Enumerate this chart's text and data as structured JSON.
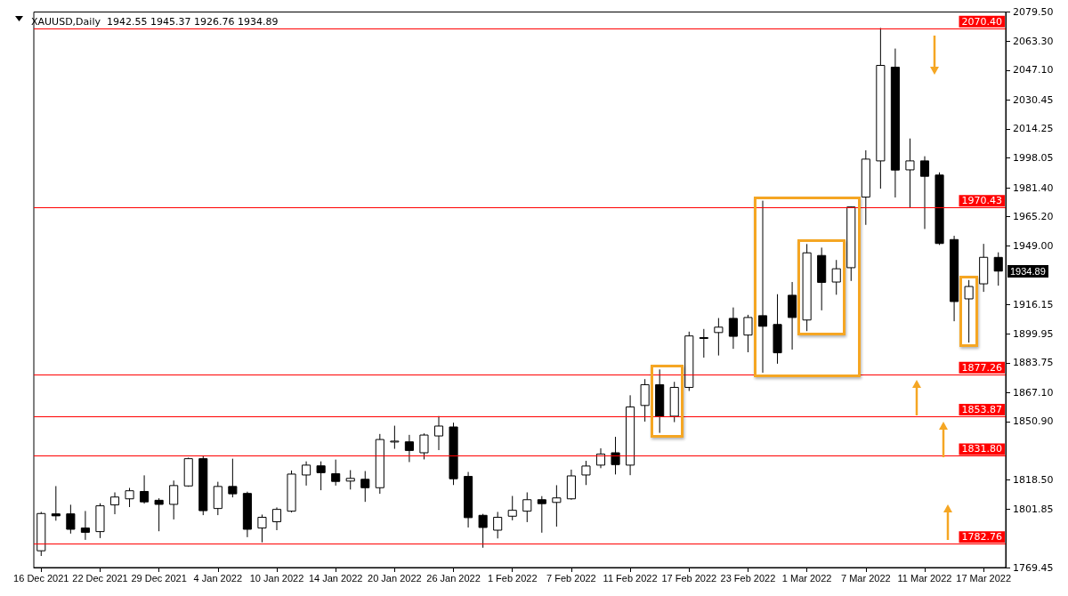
{
  "chart_data": {
    "type": "candlestick",
    "title": "XAUUSD,Daily  1942.55 1945.37 1926.76 1934.89",
    "categories": [
      "16 Dec 2021",
      null,
      null,
      null,
      "22 Dec 2021",
      null,
      null,
      null,
      "29 Dec 2021",
      null,
      null,
      null,
      "4 Jan 2022",
      null,
      null,
      null,
      "10 Jan 2022",
      null,
      null,
      null,
      "14 Jan 2022",
      null,
      null,
      null,
      "20 Jan 2022",
      null,
      null,
      null,
      "26 Jan 2022",
      null,
      null,
      null,
      "1 Feb 2022",
      null,
      null,
      null,
      "7 Feb 2022",
      null,
      null,
      null,
      "11 Feb 2022",
      null,
      null,
      null,
      "17 Feb 2022",
      null,
      null,
      null,
      "23 Feb 2022",
      null,
      null,
      null,
      "1 Mar 2022",
      null,
      null,
      null,
      "7 Mar 2022",
      null,
      null,
      null,
      "11 Mar 2022",
      null,
      null,
      null,
      "17 Mar 2022",
      null
    ],
    "color": "#000000",
    "ohlc": [
      [
        1778.8,
        1800.5,
        1775.9,
        1799.6
      ],
      [
        1799.4,
        1814.9,
        1795.6,
        1798.3
      ],
      [
        1799.4,
        1804.5,
        1788.4,
        1790.8
      ],
      [
        1791.5,
        1801.0,
        1784.9,
        1789.1
      ],
      [
        1789.5,
        1805.3,
        1785.9,
        1803.9
      ],
      [
        1804.4,
        1811.4,
        1799.2,
        1808.8
      ],
      [
        1807.8,
        1813.9,
        1803.2,
        1812.3
      ],
      [
        1811.9,
        1820.9,
        1805.1,
        1806.1
      ],
      [
        1807.0,
        1808.1,
        1789.7,
        1804.7
      ],
      [
        1804.7,
        1818.0,
        1796.3,
        1815.2
      ],
      [
        1815.0,
        1830.8,
        1814.5,
        1830.2
      ],
      [
        1830.2,
        1831.7,
        1798.7,
        1801.2
      ],
      [
        1802.4,
        1817.3,
        1798.7,
        1814.7
      ],
      [
        1814.7,
        1830.2,
        1808.6,
        1810.6
      ],
      [
        1810.8,
        1811.8,
        1786.4,
        1790.8
      ],
      [
        1791.5,
        1799.0,
        1783.5,
        1797.5
      ],
      [
        1795.0,
        1803.0,
        1790.3,
        1801.9
      ],
      [
        1800.9,
        1823.6,
        1800.2,
        1821.6
      ],
      [
        1821.1,
        1828.7,
        1815.2,
        1826.6
      ],
      [
        1826.2,
        1828.7,
        1812.6,
        1822.4
      ],
      [
        1821.8,
        1829.7,
        1815.2,
        1817.5
      ],
      [
        1817.7,
        1823.8,
        1813.0,
        1819.2
      ],
      [
        1818.7,
        1823.3,
        1806.1,
        1814.0
      ],
      [
        1814.0,
        1844.0,
        1810.6,
        1840.9
      ],
      [
        1839.9,
        1848.6,
        1835.7,
        1840.0
      ],
      [
        1839.6,
        1843.5,
        1828.3,
        1834.8
      ],
      [
        1833.5,
        1844.3,
        1829.8,
        1843.4
      ],
      [
        1842.9,
        1854.0,
        1835.0,
        1848.4
      ],
      [
        1847.9,
        1850.3,
        1815.5,
        1819.0
      ],
      [
        1820.3,
        1822.8,
        1791.8,
        1797.3
      ],
      [
        1798.6,
        1799.4,
        1780.5,
        1791.8
      ],
      [
        1790.3,
        1800.5,
        1785.7,
        1797.5
      ],
      [
        1798.1,
        1809.4,
        1795.8,
        1801.4
      ],
      [
        1800.9,
        1811.4,
        1794.8,
        1807.3
      ],
      [
        1807.3,
        1809.3,
        1788.9,
        1805.1
      ],
      [
        1805.8,
        1815.4,
        1792.3,
        1808.3
      ],
      [
        1807.8,
        1824.1,
        1807.3,
        1820.6
      ],
      [
        1821.1,
        1829.0,
        1815.5,
        1826.1
      ],
      [
        1826.6,
        1836.0,
        1824.9,
        1832.8
      ],
      [
        1833.5,
        1842.4,
        1821.4,
        1826.9
      ],
      [
        1826.6,
        1865.6,
        1821.0,
        1859.1
      ],
      [
        1859.9,
        1874.6,
        1850.9,
        1871.5
      ],
      [
        1871.5,
        1880.0,
        1844.6,
        1853.7
      ],
      [
        1853.9,
        1873.1,
        1850.6,
        1870.0
      ],
      [
        1870.0,
        1901.1,
        1868.0,
        1898.7
      ],
      [
        1897.8,
        1902.6,
        1886.6,
        1897.6
      ],
      [
        1900.6,
        1908.7,
        1887.8,
        1903.6
      ],
      [
        1908.5,
        1914.6,
        1891.5,
        1898.5
      ],
      [
        1899.2,
        1910.5,
        1889.6,
        1909.0
      ],
      [
        1910.0,
        1974.2,
        1878.2,
        1904.1
      ],
      [
        1905.1,
        1922.0,
        1883.2,
        1889.3
      ],
      [
        1921.4,
        1928.8,
        1891.1,
        1909.0
      ],
      [
        1907.6,
        1950.0,
        1901.4,
        1945.1
      ],
      [
        1943.6,
        1948.0,
        1913.0,
        1928.6
      ],
      [
        1928.8,
        1941.1,
        1921.7,
        1936.2
      ],
      [
        1936.8,
        1971.0,
        1929.4,
        1970.7
      ],
      [
        1976.2,
        2002.3,
        1960.7,
        1997.4
      ],
      [
        1996.4,
        2070.6,
        1980.9,
        2049.7
      ],
      [
        2048.7,
        2059.1,
        1976.0,
        1991.3
      ],
      [
        1991.4,
        2008.9,
        1970.2,
        1996.4
      ],
      [
        1996.4,
        1999.0,
        1958.4,
        1987.8
      ],
      [
        1988.5,
        1990.0,
        1949.5,
        1950.3
      ],
      [
        1952.5,
        1954.6,
        1906.9,
        1917.9
      ],
      [
        1919.4,
        1929.9,
        1895.0,
        1926.3
      ],
      [
        1927.8,
        1950.1,
        1923.3,
        1942.6
      ],
      [
        1942.55,
        1945.37,
        1926.76,
        1934.89
      ]
    ],
    "ylim": [
      1769.45,
      2079.5
    ],
    "yticks": [
      {
        "value": 2079.5,
        "label": "2079.50"
      },
      {
        "value": 2063.3,
        "label": "2063.30"
      },
      {
        "value": 2047.1,
        "label": "2047.10"
      },
      2030.45,
      2014.25,
      1998.05,
      {
        "value": 1981.4,
        "label": "1981.40"
      },
      {
        "value": 1965.2,
        "label": "1965.20"
      },
      {
        "value": 1949,
        "label": "1949.00"
      },
      1916.15,
      1899.95,
      1883.75,
      {
        "value": 1867.1,
        "label": "1867.10"
      },
      {
        "value": 1850.9,
        "label": "1850.90"
      },
      {
        "value": 1818.5,
        "label": "1818.50"
      },
      1801.85,
      1769.45
    ],
    "ref_lines": [
      {
        "axis": "y",
        "value": 2070.4,
        "label": "2070.40",
        "color": "#ff0000"
      },
      {
        "axis": "y",
        "value": 1970.43,
        "label": "1970.43",
        "color": "#ff0000"
      },
      {
        "axis": "y",
        "value": 1877.26,
        "label": "1877.26",
        "color": "#ff0000"
      },
      {
        "axis": "y",
        "value": 1853.87,
        "label": "1853.87",
        "color": "#ff0000"
      },
      {
        "axis": "y",
        "value": 1831.8,
        "label": "1831.80",
        "color": "#ff0000"
      },
      {
        "axis": "y",
        "value": 1782.76,
        "label": "1782.76",
        "color": "#ff0000"
      }
    ],
    "annotations": [
      "1934.89"
    ]
  }
}
